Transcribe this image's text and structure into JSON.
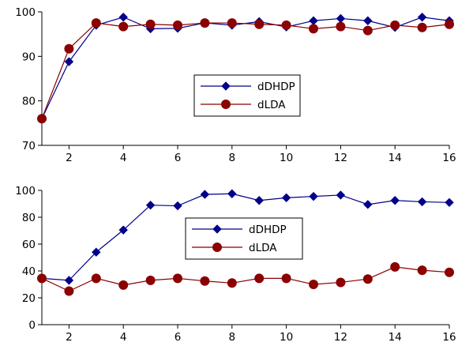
{
  "chart_data": [
    {
      "type": "line",
      "x": [
        1,
        2,
        3,
        4,
        5,
        6,
        7,
        8,
        9,
        10,
        11,
        12,
        13,
        14,
        15,
        16
      ],
      "xlim": [
        1,
        16
      ],
      "ylim": [
        70,
        100
      ],
      "xticks": [
        2,
        4,
        6,
        8,
        10,
        12,
        14,
        16
      ],
      "yticks": [
        70,
        80,
        90,
        100
      ],
      "title": "",
      "xlabel": "",
      "ylabel": "",
      "legend_position": "center-right",
      "series": [
        {
          "name": "dDHDP",
          "color": "#00008b",
          "marker": "diamond",
          "values": [
            76.0,
            88.8,
            97.0,
            98.8,
            96.2,
            96.3,
            97.5,
            97.0,
            97.8,
            96.6,
            98.0,
            98.5,
            98.0,
            96.5,
            98.8,
            98.0
          ]
        },
        {
          "name": "dLDA",
          "color": "#8b0000",
          "marker": "circle",
          "values": [
            76.0,
            91.7,
            97.5,
            96.7,
            97.2,
            97.0,
            97.5,
            97.5,
            97.2,
            97.0,
            96.2,
            96.7,
            95.8,
            97.0,
            96.5,
            97.2
          ]
        }
      ]
    },
    {
      "type": "line",
      "x": [
        1,
        2,
        3,
        4,
        5,
        6,
        7,
        8,
        9,
        10,
        11,
        12,
        13,
        14,
        15,
        16
      ],
      "xlim": [
        1,
        16
      ],
      "ylim": [
        0,
        100
      ],
      "xticks": [
        2,
        4,
        6,
        8,
        10,
        12,
        14,
        16
      ],
      "yticks": [
        0,
        20,
        40,
        60,
        80,
        100
      ],
      "title": "",
      "xlabel": "",
      "ylabel": "",
      "legend_position": "center-right",
      "series": [
        {
          "name": "dDHDP",
          "color": "#00008b",
          "marker": "diamond",
          "values": [
            34.5,
            33.0,
            54.0,
            70.5,
            89.0,
            88.5,
            97.0,
            97.5,
            92.5,
            94.5,
            95.5,
            96.5,
            89.5,
            92.5,
            91.5,
            91.0
          ]
        },
        {
          "name": "dLDA",
          "color": "#8b0000",
          "marker": "circle",
          "values": [
            34.5,
            25.0,
            34.5,
            29.5,
            33.0,
            34.5,
            32.5,
            31.0,
            34.5,
            34.5,
            30.0,
            31.5,
            34.0,
            43.0,
            40.5,
            39.0
          ]
        }
      ]
    }
  ]
}
